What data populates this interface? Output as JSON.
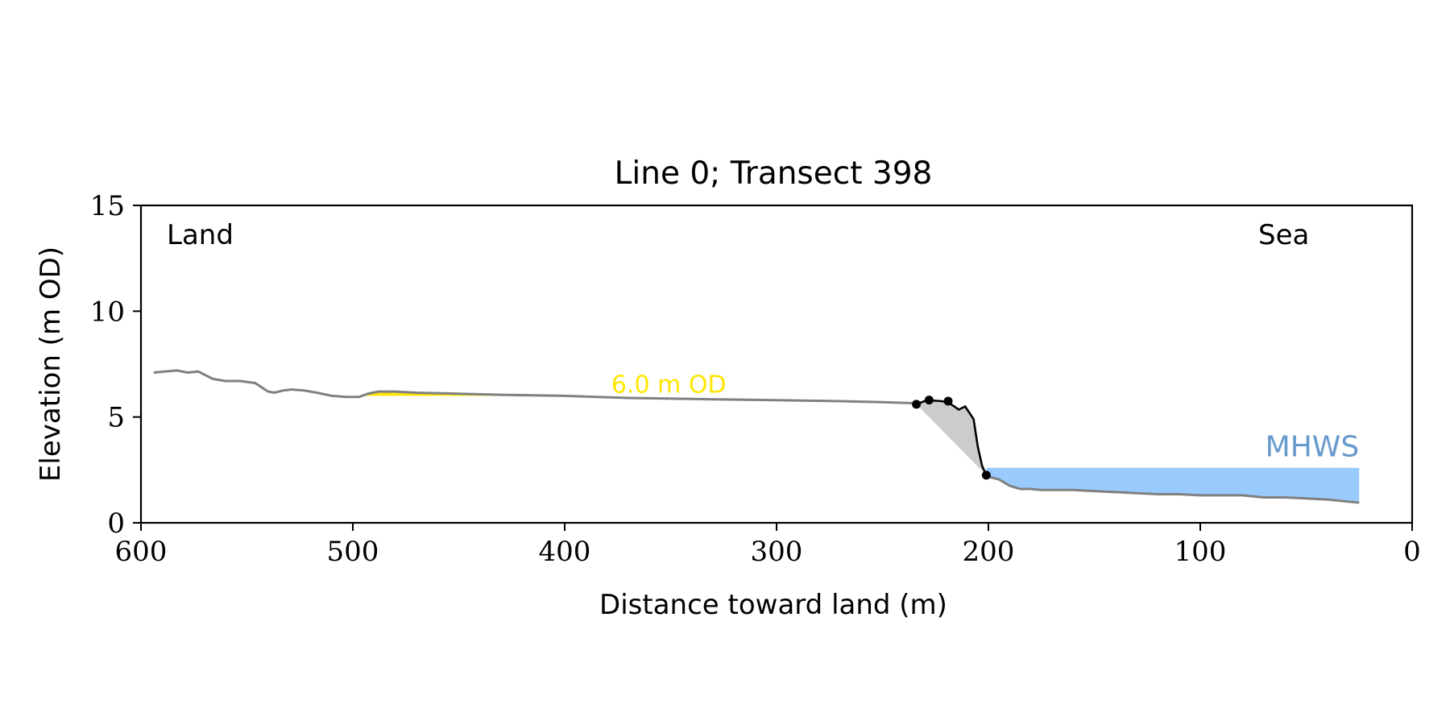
{
  "chart_data": {
    "type": "line",
    "title": "Line 0; Transect 398",
    "xlabel": "Distance toward land (m)",
    "ylabel": "Elevation (m OD)",
    "xlim": [
      600,
      0
    ],
    "ylim": [
      0,
      15
    ],
    "x_ticks": [
      600,
      500,
      400,
      300,
      200,
      100,
      0
    ],
    "y_ticks": [
      0,
      5,
      10,
      15
    ],
    "grid": false,
    "annotations": {
      "land": "Land",
      "sea": "Sea",
      "level_label": "6.0 m OD",
      "mhws_label": "MHWS"
    },
    "colors": {
      "profile": "#808080",
      "cliff": "#000000",
      "level_fill": "#ffe600",
      "level_text": "#ffe600",
      "mhws_fill": "#99cbff",
      "mhws_text": "#6699cc",
      "wedge_fill": "#cccccc"
    },
    "mhws_level": 2.6,
    "level_elevation": 6.0,
    "profile": {
      "x": [
        594,
        589,
        583,
        578,
        573,
        566,
        560,
        553,
        546,
        540,
        537,
        533,
        529,
        523,
        517,
        510,
        503,
        497,
        493,
        488,
        480,
        470,
        450,
        430,
        400,
        370,
        340,
        300,
        270,
        250,
        234
      ],
      "y": [
        7.1,
        7.15,
        7.2,
        7.1,
        7.15,
        6.8,
        6.7,
        6.7,
        6.6,
        6.2,
        6.15,
        6.25,
        6.3,
        6.25,
        6.15,
        6.0,
        5.95,
        5.95,
        6.1,
        6.2,
        6.2,
        6.15,
        6.1,
        6.05,
        6.0,
        5.9,
        5.85,
        5.8,
        5.75,
        5.7,
        5.65
      ]
    },
    "cliff": {
      "x": [
        234,
        229,
        222,
        219,
        214,
        211,
        207,
        205,
        203,
        201
      ],
      "y": [
        5.6,
        5.8,
        5.75,
        5.7,
        5.35,
        5.5,
        4.9,
        3.6,
        2.7,
        2.25
      ]
    },
    "markers": {
      "x": [
        234,
        228,
        219,
        201
      ],
      "y": [
        5.6,
        5.8,
        5.75,
        2.25
      ]
    },
    "sea_profile": {
      "x": [
        201,
        195,
        190,
        185,
        180,
        175,
        170,
        160,
        150,
        140,
        130,
        120,
        110,
        100,
        90,
        80,
        70,
        60,
        50,
        40,
        30,
        25
      ],
      "y": [
        2.2,
        2.05,
        1.75,
        1.6,
        1.6,
        1.55,
        1.55,
        1.55,
        1.5,
        1.45,
        1.4,
        1.35,
        1.35,
        1.3,
        1.3,
        1.3,
        1.2,
        1.2,
        1.15,
        1.1,
        1.0,
        0.95
      ]
    },
    "level_fill_x": [
      495,
      400
    ],
    "mhws_fill_x": [
      201,
      25
    ]
  }
}
